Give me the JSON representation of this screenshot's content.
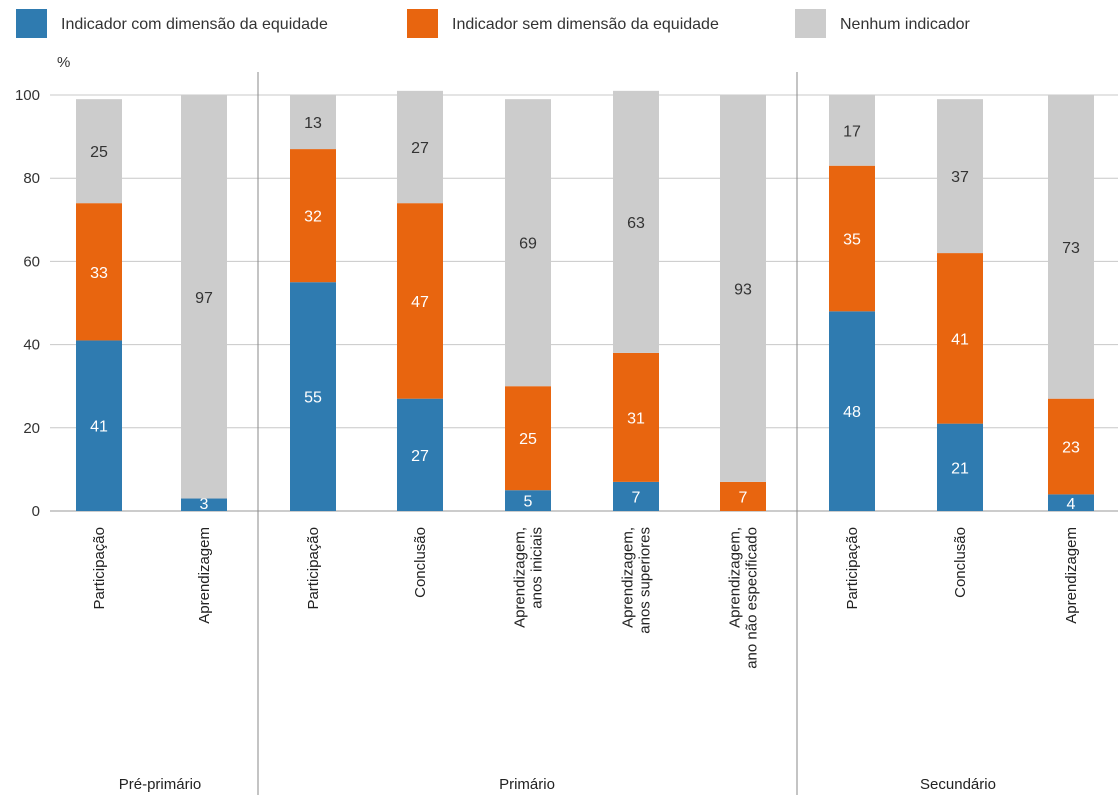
{
  "chart_data": {
    "type": "bar",
    "stacked": true,
    "unit_label": "%",
    "ylim": [
      0,
      100
    ],
    "yticks": [
      0,
      20,
      40,
      60,
      80,
      100
    ],
    "grid": true,
    "legend_position": "top",
    "groups": [
      {
        "label": "Pré-primário",
        "categories": [
          "Participação",
          "Aprendizagem"
        ]
      },
      {
        "label": "Primário",
        "categories": [
          "Participação",
          "Conclusão",
          "Aprendizagem,|anos iniciais",
          "Aprendizagem,|anos superiores",
          "Aprendizagem,|ano não especificado"
        ]
      },
      {
        "label": "Secundário",
        "categories": [
          "Participação",
          "Conclusão",
          "Aprendizagem"
        ]
      }
    ],
    "series": [
      {
        "name": "Indicador com dimensão da equidade",
        "color": "#2f7bb0",
        "label_color": "light",
        "values": [
          41,
          3,
          55,
          27,
          5,
          7,
          0,
          48,
          21,
          4
        ]
      },
      {
        "name": "Indicador sem dimensão da equidade",
        "color": "#e8650f",
        "label_color": "light",
        "values": [
          33,
          0,
          32,
          47,
          25,
          31,
          7,
          35,
          41,
          23
        ]
      },
      {
        "name": "Nenhum indicador",
        "color": "#cccccc",
        "label_color": "dark",
        "values": [
          25,
          97,
          13,
          27,
          69,
          63,
          93,
          17,
          37,
          73
        ]
      }
    ]
  }
}
